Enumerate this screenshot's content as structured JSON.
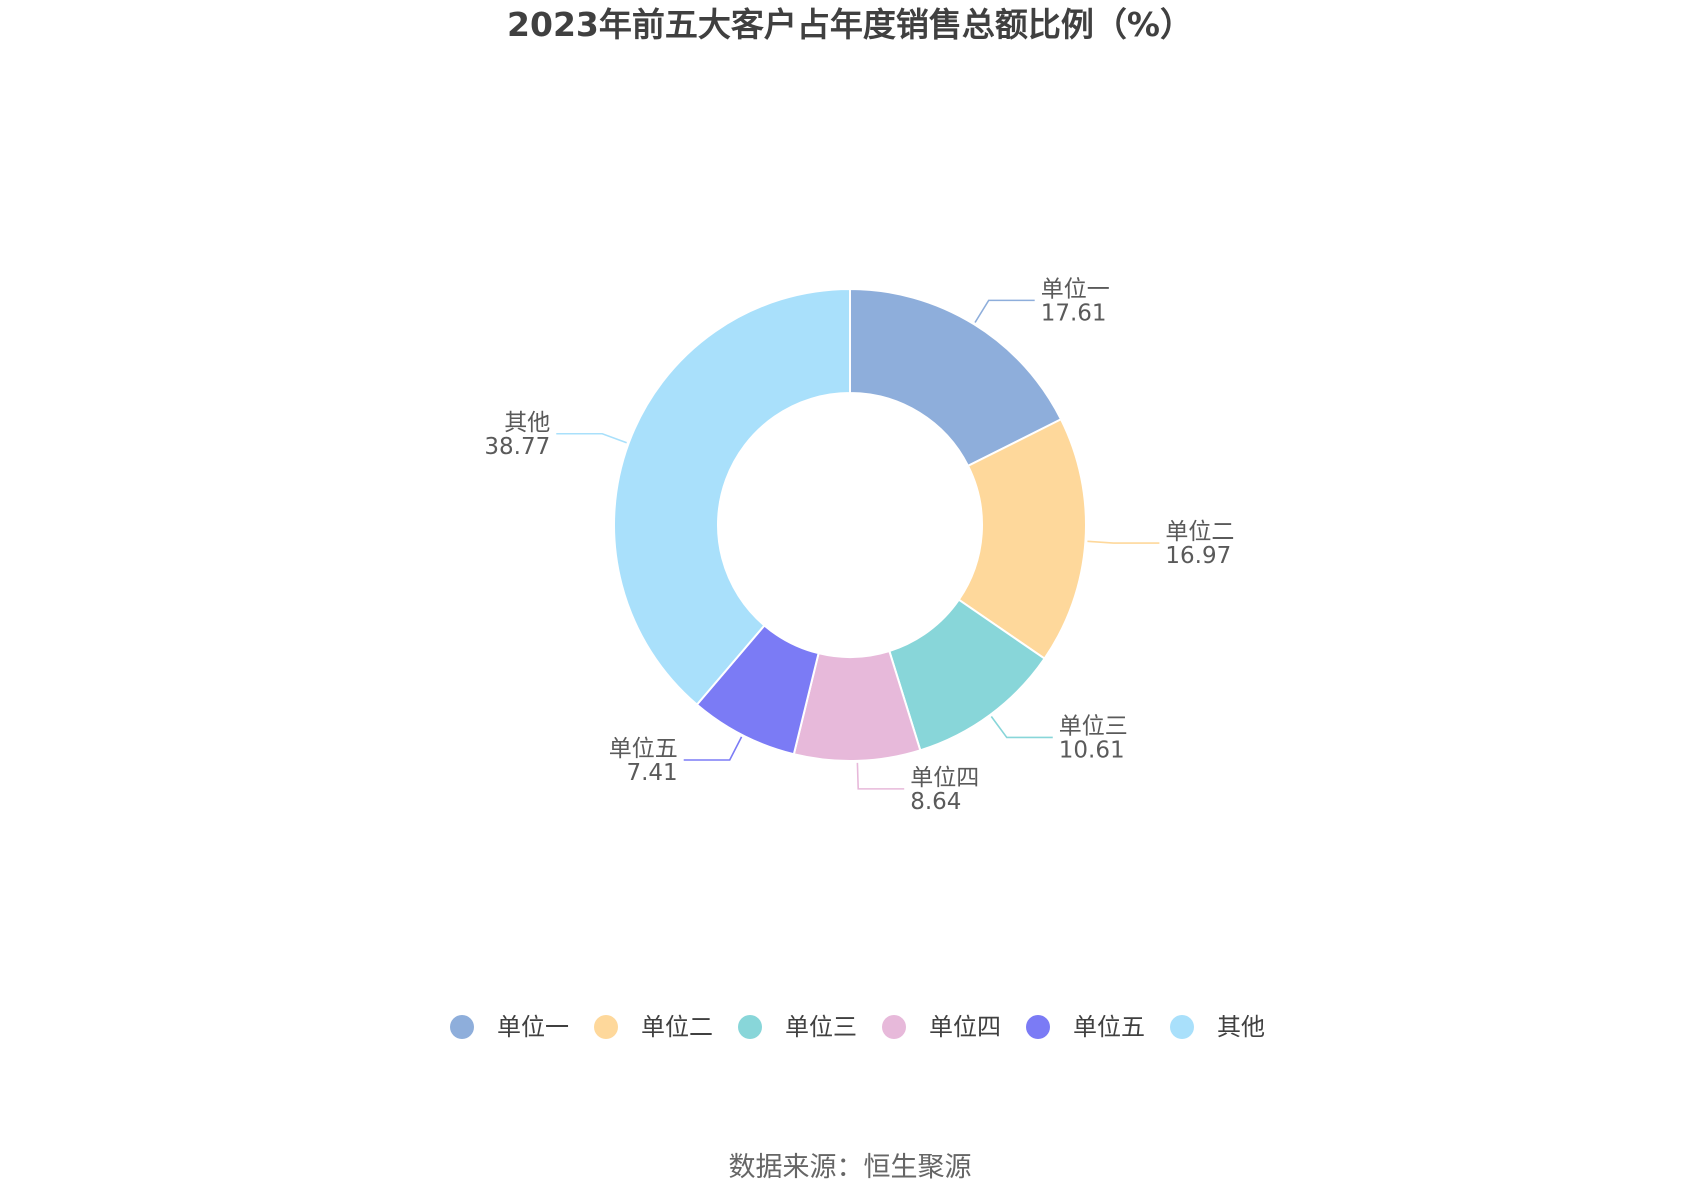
{
  "chart_data": {
    "type": "pie",
    "variant": "donut",
    "title": "2023年前五大客户占年度销售总额比例（%）",
    "slices": [
      {
        "name": "单位一",
        "value": 17.61,
        "value_label": "17.61",
        "color": "#8eaedb"
      },
      {
        "name": "单位二",
        "value": 16.97,
        "value_label": "16.97",
        "color": "#fed89b"
      },
      {
        "name": "单位三",
        "value": 10.61,
        "value_label": "10.61",
        "color": "#88d6d9"
      },
      {
        "name": "单位四",
        "value": 8.64,
        "value_label": "8.64",
        "color": "#e7b9da"
      },
      {
        "name": "单位五",
        "value": 7.41,
        "value_label": "7.41",
        "color": "#7b7bf5"
      },
      {
        "name": "其他",
        "value": 38.77,
        "value_label": "38.77",
        "color": "#a9e0fb"
      }
    ],
    "legend_position": "bottom",
    "source": "数据来源：恒生聚源"
  }
}
